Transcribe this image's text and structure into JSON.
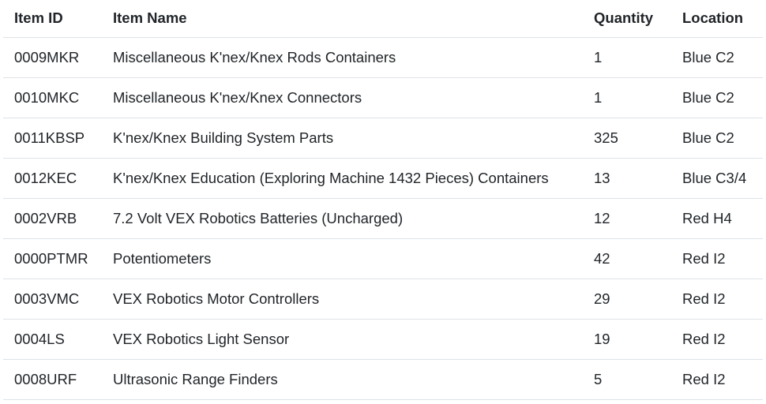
{
  "headers": {
    "id": "Item ID",
    "name": "Item Name",
    "quantity": "Quantity",
    "location": "Location"
  },
  "rows": [
    {
      "id": "0009MKR",
      "name": "Miscellaneous K'nex/Knex Rods Containers",
      "quantity": "1",
      "location": "Blue C2"
    },
    {
      "id": "0010MKC",
      "name": "Miscellaneous K'nex/Knex Connectors",
      "quantity": "1",
      "location": "Blue C2"
    },
    {
      "id": "0011KBSP",
      "name": "K'nex/Knex Building System Parts",
      "quantity": "325",
      "location": "Blue C2"
    },
    {
      "id": "0012KEC",
      "name": "K'nex/Knex Education (Exploring Machine 1432 Pieces) Containers",
      "quantity": "13",
      "location": "Blue C3/4"
    },
    {
      "id": "0002VRB",
      "name": "7.2 Volt VEX Robotics Batteries (Uncharged)",
      "quantity": "12",
      "location": "Red H4"
    },
    {
      "id": "0000PTMR",
      "name": "Potentiometers",
      "quantity": "42",
      "location": "Red I2"
    },
    {
      "id": "0003VMC",
      "name": "VEX Robotics Motor Controllers",
      "quantity": "29",
      "location": "Red I2"
    },
    {
      "id": "0004LS",
      "name": "VEX Robotics Light Sensor",
      "quantity": "19",
      "location": "Red I2"
    },
    {
      "id": "0008URF",
      "name": "Ultrasonic Range Finders",
      "quantity": "5",
      "location": "Red I2"
    }
  ]
}
